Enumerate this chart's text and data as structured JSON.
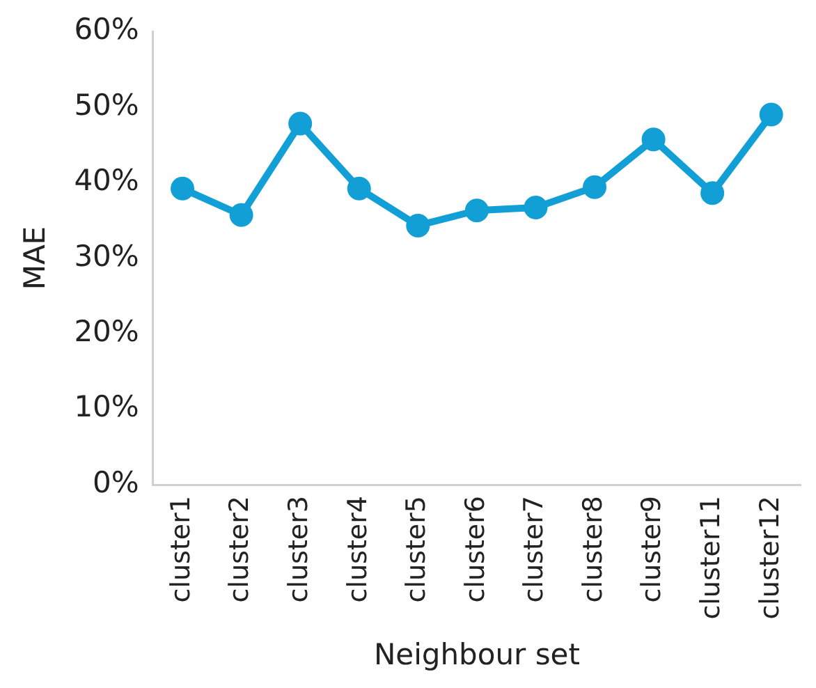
{
  "chart_data": {
    "type": "line",
    "xlabel": "Neighbour set",
    "ylabel": "MAE",
    "categories": [
      "cluster1",
      "cluster2",
      "cluster3",
      "cluster4",
      "cluster5",
      "cluster6",
      "cluster7",
      "cluster8",
      "cluster9",
      "cluster11",
      "cluster12"
    ],
    "series": [
      {
        "color": "#129fd6",
        "values": [
          39.2,
          35.7,
          47.8,
          39.2,
          34.3,
          36.3,
          36.7,
          39.4,
          45.7,
          38.6,
          49.0
        ]
      }
    ],
    "ylim": [
      0,
      60
    ],
    "yticks": [
      {
        "value": 0,
        "label": "0%"
      },
      {
        "value": 10,
        "label": "10%"
      },
      {
        "value": 20,
        "label": "20%"
      },
      {
        "value": 30,
        "label": "30%"
      },
      {
        "value": 40,
        "label": "40%"
      },
      {
        "value": 50,
        "label": "50%"
      },
      {
        "value": 60,
        "label": "60%"
      }
    ],
    "grid": false,
    "legend": false,
    "marker": "circle",
    "line_style": "solid"
  }
}
